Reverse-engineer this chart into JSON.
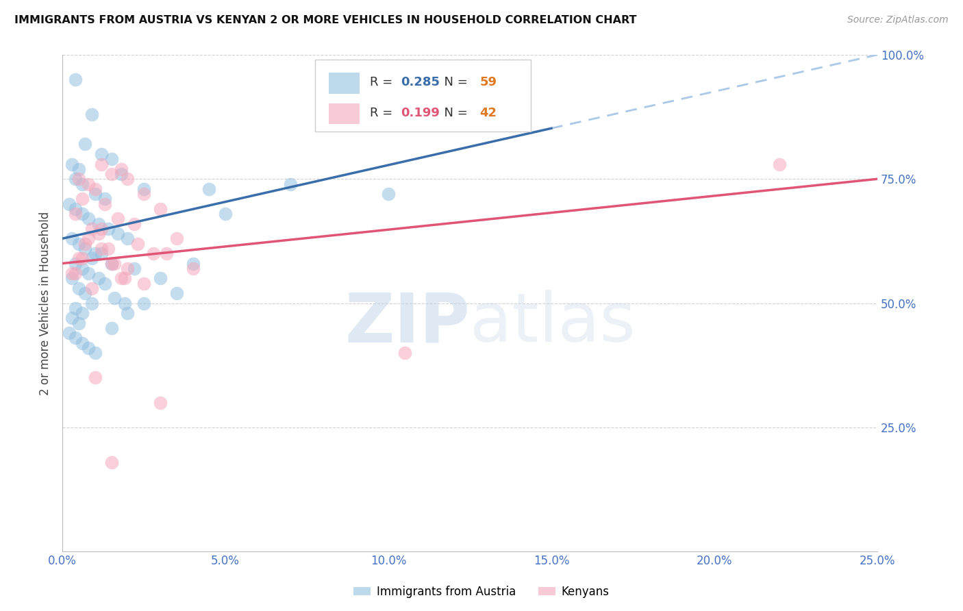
{
  "title": "IMMIGRANTS FROM AUSTRIA VS KENYAN 2 OR MORE VEHICLES IN HOUSEHOLD CORRELATION CHART",
  "source": "Source: ZipAtlas.com",
  "ylabel": "2 or more Vehicles in Household",
  "xlabel_blue": "Immigrants from Austria",
  "xlabel_pink": "Kenyans",
  "legend_blue_R": "0.285",
  "legend_blue_N": "59",
  "legend_pink_R": "0.199",
  "legend_pink_N": "42",
  "blue_color": "#92c0e0",
  "pink_color": "#f4a8bc",
  "blue_line_color": "#3a6eaa",
  "pink_line_color": "#e05575",
  "blue_line_solid_color": "#3a6eaa",
  "blue_line_dash_color": "#aac8e8",
  "axis_tick_color": "#4472c4",
  "blue_scatter": [
    [
      0.4,
      95
    ],
    [
      0.9,
      88
    ],
    [
      0.7,
      82
    ],
    [
      1.2,
      80
    ],
    [
      1.5,
      79
    ],
    [
      0.3,
      78
    ],
    [
      0.5,
      77
    ],
    [
      1.8,
      76
    ],
    [
      0.4,
      75
    ],
    [
      0.6,
      74
    ],
    [
      2.5,
      73
    ],
    [
      1.0,
      72
    ],
    [
      1.3,
      71
    ],
    [
      0.2,
      70
    ],
    [
      0.4,
      69
    ],
    [
      0.6,
      68
    ],
    [
      0.8,
      67
    ],
    [
      1.1,
      66
    ],
    [
      1.4,
      65
    ],
    [
      1.7,
      64
    ],
    [
      2.0,
      63
    ],
    [
      0.3,
      63
    ],
    [
      0.5,
      62
    ],
    [
      0.7,
      61
    ],
    [
      1.0,
      60
    ],
    [
      1.2,
      60
    ],
    [
      0.9,
      59
    ],
    [
      1.5,
      58
    ],
    [
      0.4,
      58
    ],
    [
      2.2,
      57
    ],
    [
      0.6,
      57
    ],
    [
      0.8,
      56
    ],
    [
      1.1,
      55
    ],
    [
      0.3,
      55
    ],
    [
      1.3,
      54
    ],
    [
      0.5,
      53
    ],
    [
      0.7,
      52
    ],
    [
      1.6,
      51
    ],
    [
      0.9,
      50
    ],
    [
      1.9,
      50
    ],
    [
      0.4,
      49
    ],
    [
      0.6,
      48
    ],
    [
      4.5,
      73
    ],
    [
      5.0,
      68
    ],
    [
      7.0,
      74
    ],
    [
      10.0,
      72
    ],
    [
      0.2,
      44
    ],
    [
      0.4,
      43
    ],
    [
      0.6,
      42
    ],
    [
      0.8,
      41
    ],
    [
      1.0,
      40
    ],
    [
      2.0,
      48
    ],
    [
      3.0,
      55
    ],
    [
      3.5,
      52
    ],
    [
      0.3,
      47
    ],
    [
      0.5,
      46
    ],
    [
      2.5,
      50
    ],
    [
      1.5,
      45
    ],
    [
      4.0,
      58
    ]
  ],
  "pink_scatter": [
    [
      1.2,
      78
    ],
    [
      1.8,
      77
    ],
    [
      1.5,
      76
    ],
    [
      2.0,
      75
    ],
    [
      0.8,
      74
    ],
    [
      1.0,
      73
    ],
    [
      2.5,
      72
    ],
    [
      0.6,
      71
    ],
    [
      1.3,
      70
    ],
    [
      3.0,
      69
    ],
    [
      0.4,
      68
    ],
    [
      1.7,
      67
    ],
    [
      2.2,
      66
    ],
    [
      0.9,
      65
    ],
    [
      1.1,
      64
    ],
    [
      3.5,
      63
    ],
    [
      0.7,
      62
    ],
    [
      1.4,
      61
    ],
    [
      2.8,
      60
    ],
    [
      0.5,
      59
    ],
    [
      1.6,
      58
    ],
    [
      4.0,
      57
    ],
    [
      0.3,
      56
    ],
    [
      1.9,
      55
    ],
    [
      0.8,
      63
    ],
    [
      2.3,
      62
    ],
    [
      1.2,
      61
    ],
    [
      3.2,
      60
    ],
    [
      0.6,
      59
    ],
    [
      1.5,
      58
    ],
    [
      2.0,
      57
    ],
    [
      0.4,
      56
    ],
    [
      1.8,
      55
    ],
    [
      2.5,
      54
    ],
    [
      0.9,
      53
    ],
    [
      1.0,
      35
    ],
    [
      10.5,
      40
    ],
    [
      3.0,
      30
    ],
    [
      1.5,
      18
    ],
    [
      22.0,
      78
    ],
    [
      0.5,
      75
    ],
    [
      1.2,
      65
    ]
  ],
  "xmin": 0.0,
  "xmax": 25.0,
  "ymin": 0.0,
  "ymax": 100.0,
  "yticks": [
    0,
    25,
    50,
    75,
    100
  ],
  "ytick_labels": [
    "",
    "25.0%",
    "50.0%",
    "75.0%",
    "100.0%"
  ],
  "xticks": [
    0,
    5,
    10,
    15,
    20,
    25
  ],
  "xtick_labels": [
    "0.0%",
    "5.0%",
    "10.0%",
    "15.0%",
    "20.0%",
    "25.0%"
  ],
  "blue_trend_x0": 0.0,
  "blue_trend_y0": 63.0,
  "blue_trend_x1": 25.0,
  "blue_trend_y1": 100.0,
  "blue_solid_end_x": 15.0,
  "pink_trend_x0": 0.0,
  "pink_trend_y0": 58.0,
  "pink_trend_x1": 25.0,
  "pink_trend_y1": 75.0
}
